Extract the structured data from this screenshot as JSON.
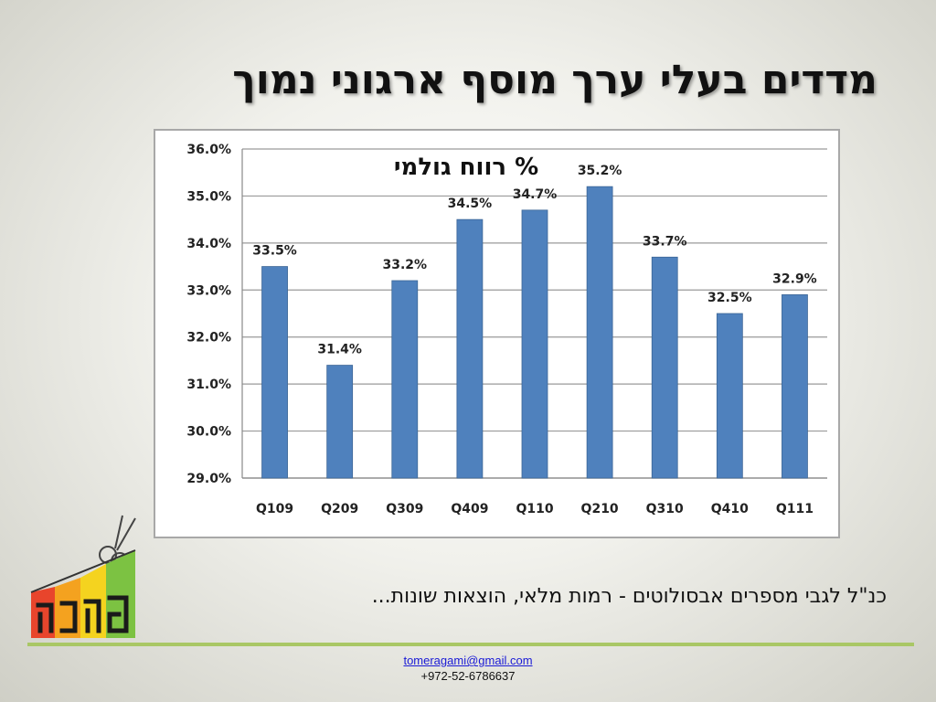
{
  "slide": {
    "title": "מדדים בעלי ערך מוסף ארגוני נמוך",
    "note": "כנ\"ל לגבי מספרים אבסולוטים - רמות מלאי, הוצאות שונות...",
    "contact": {
      "email": "tomeragami@gmail.com",
      "phone": "+972-52-6786637"
    },
    "logo_icon": "scissors-growth-bars-logo"
  },
  "colors": {
    "bar": "#4f81bd",
    "divider": "#a9c765",
    "grid": "#9a9a9a"
  },
  "chart_data": {
    "type": "bar",
    "title": "% רווח גולמי",
    "categories": [
      "Q109",
      "Q209",
      "Q309",
      "Q409",
      "Q110",
      "Q210",
      "Q310",
      "Q410",
      "Q111"
    ],
    "values": [
      33.5,
      31.4,
      33.2,
      34.5,
      34.7,
      35.2,
      33.7,
      32.5,
      32.9
    ],
    "data_labels": [
      "33.5%",
      "31.4%",
      "33.2%",
      "34.5%",
      "34.7%",
      "35.2%",
      "33.7%",
      "32.5%",
      "32.9%"
    ],
    "ylim": [
      29,
      36
    ],
    "yticks": [
      29,
      30,
      31,
      32,
      33,
      34,
      35,
      36
    ],
    "ytick_labels": [
      "29.0%",
      "30.0%",
      "31.0%",
      "32.0%",
      "33.0%",
      "34.0%",
      "35.0%",
      "36.0%"
    ],
    "xlabel": "",
    "ylabel": "",
    "grid": true,
    "legend": false
  }
}
